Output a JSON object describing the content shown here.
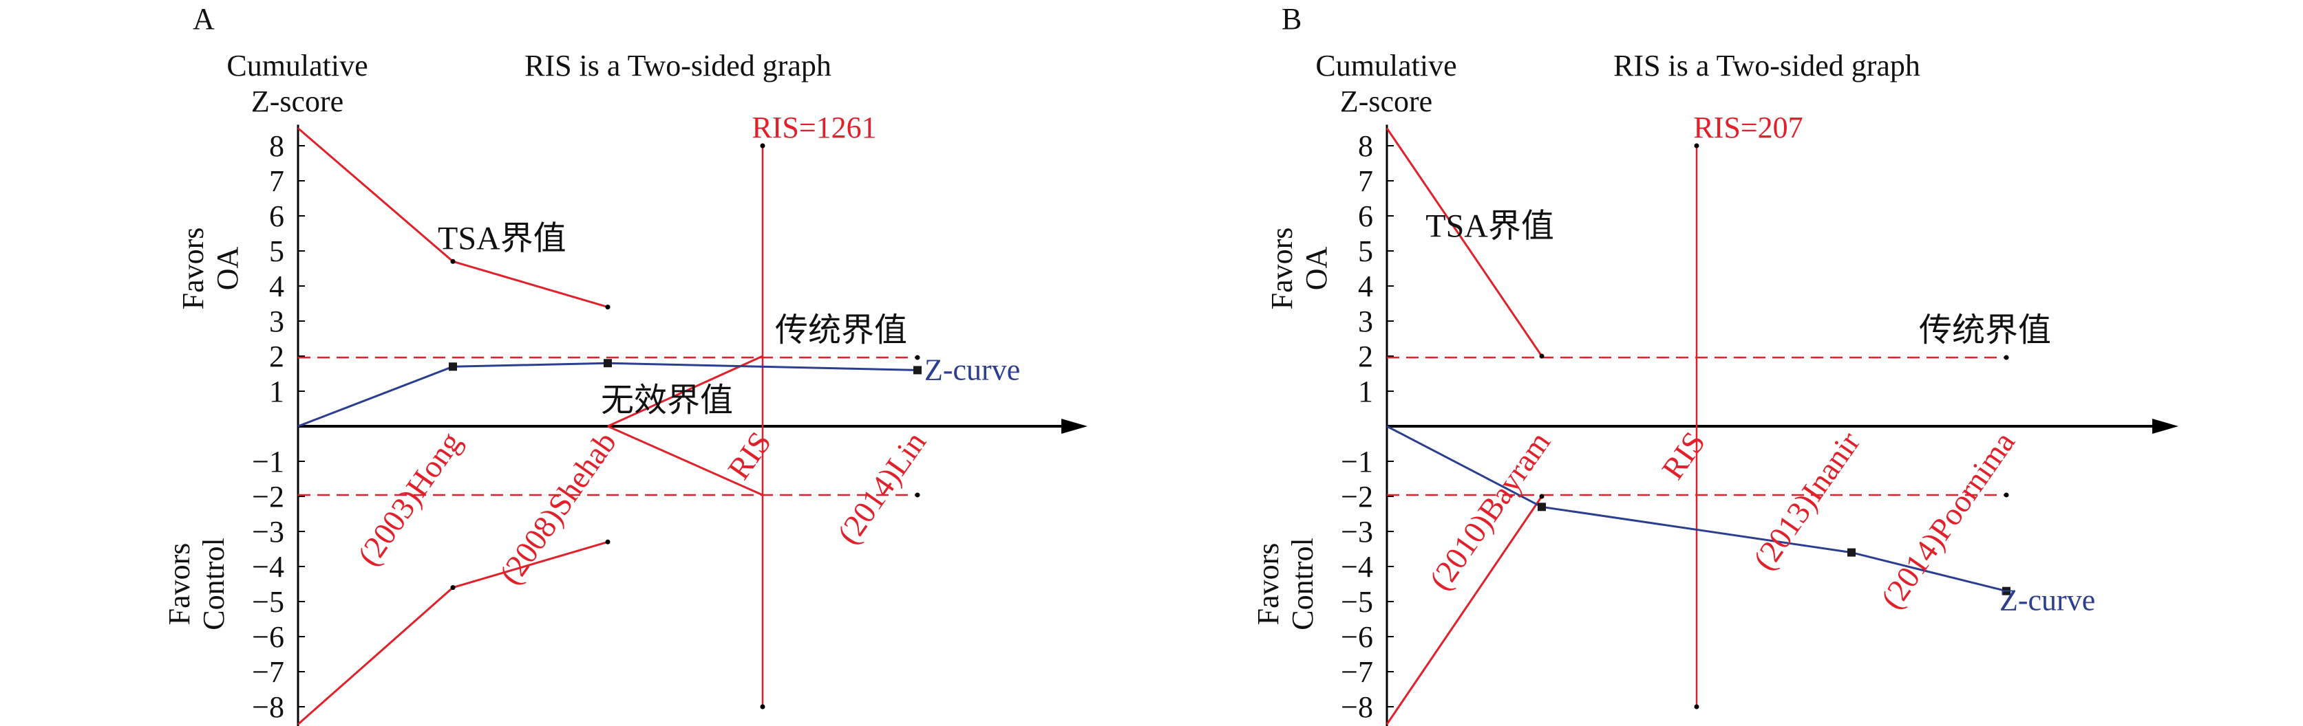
{
  "colors": {
    "axis": "#000000",
    "boundary": "#e0202a",
    "zcurve": "#2c3e8f",
    "text": "#111111"
  },
  "chart_data": [
    {
      "panel_label": "A",
      "type": "line",
      "title": "RIS is a Two-sided graph",
      "ylabel_lines": [
        "Cumulative",
        "Z-score"
      ],
      "favors_top": [
        "Favors",
        "OA"
      ],
      "favors_bottom": [
        "Favors",
        "Control"
      ],
      "ylim": [
        -8.6,
        8.6
      ],
      "yticks": [
        8,
        7,
        6,
        5,
        4,
        3,
        2,
        1,
        -1,
        -2,
        -3,
        -4,
        -5,
        -6,
        -7,
        -8
      ],
      "xlim": [
        0,
        5
      ],
      "studies": [
        {
          "x": 1,
          "label": "(2003)Hong"
        },
        {
          "x": 2,
          "label": "(2008)Shehab"
        },
        {
          "x": 4,
          "label": "(2014)Lin"
        }
      ],
      "ris": {
        "x": 3,
        "label": "RIS=1261",
        "axis_label": "RIS",
        "y_top": 8,
        "y_bottom": -8
      },
      "conventional": {
        "label": "传统界值",
        "upper": 1.96,
        "lower": -1.96,
        "x_end": 4
      },
      "tsa_label": "TSA界值",
      "futility_label": "无效界值",
      "tsa_upper": [
        [
          0,
          8.5
        ],
        [
          1,
          4.7
        ],
        [
          2,
          3.4
        ]
      ],
      "tsa_lower": [
        [
          0,
          -8.5
        ],
        [
          1,
          -4.6
        ],
        [
          2,
          -3.3
        ]
      ],
      "futility_upper": [
        [
          2,
          0
        ],
        [
          3,
          2
        ]
      ],
      "futility_lower": [
        [
          2,
          0
        ],
        [
          3,
          -1.96
        ]
      ],
      "zcurve": {
        "name": "Z-curve",
        "points": [
          [
            0,
            0
          ],
          [
            1,
            1.7
          ],
          [
            2,
            1.8
          ],
          [
            4,
            1.6
          ]
        ]
      }
    },
    {
      "panel_label": "B",
      "type": "line",
      "title": "RIS is a Two-sided graph",
      "ylabel_lines": [
        "Cumulative",
        "Z-score"
      ],
      "favors_top": [
        "Favors",
        "OA"
      ],
      "favors_bottom": [
        "Favors",
        "Control"
      ],
      "ylim": [
        -8.6,
        8.6
      ],
      "yticks": [
        8,
        7,
        6,
        5,
        4,
        3,
        2,
        1,
        -1,
        -2,
        -3,
        -4,
        -5,
        -6,
        -7,
        -8
      ],
      "xlim": [
        0,
        5
      ],
      "studies": [
        {
          "x": 1,
          "label": "(2010)Bayram"
        },
        {
          "x": 3,
          "label": "(2013)Inanir"
        },
        {
          "x": 4,
          "label": "(2014)Poornima"
        }
      ],
      "ris": {
        "x": 2,
        "label": "RIS=207",
        "axis_label": "RIS",
        "y_top": 8,
        "y_bottom": -8
      },
      "conventional": {
        "label": "传统界值",
        "upper": 1.96,
        "lower": -1.96,
        "x_end": 4
      },
      "tsa_label": "TSA界值",
      "futility_label": "",
      "tsa_upper": [
        [
          0,
          8.5
        ],
        [
          1,
          2
        ]
      ],
      "tsa_lower": [
        [
          0,
          -8.5
        ],
        [
          1,
          -2
        ]
      ],
      "futility_upper": [],
      "futility_lower": [],
      "zcurve": {
        "name": "Z-curve",
        "points": [
          [
            0,
            0
          ],
          [
            1,
            -2.3
          ],
          [
            3,
            -3.6
          ],
          [
            4,
            -4.7
          ]
        ]
      }
    }
  ]
}
